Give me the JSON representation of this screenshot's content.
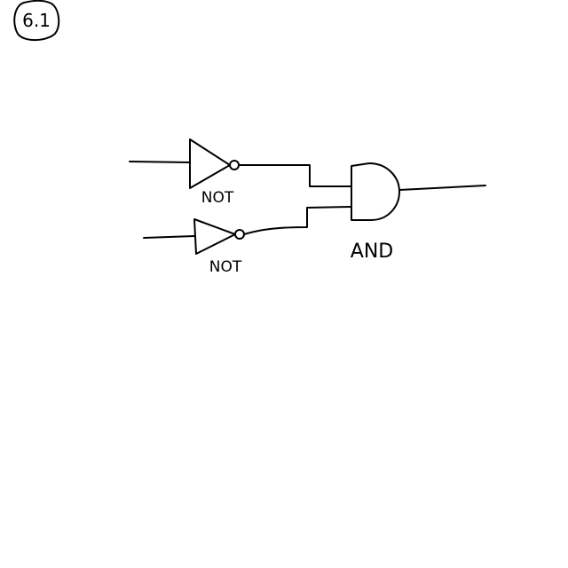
{
  "figure_label": "6.1",
  "gates": {
    "not_top": "NOT",
    "not_bottom": "NOT",
    "and": "AND"
  },
  "colors": {
    "background": "#ffffff",
    "ink": "#000000"
  }
}
